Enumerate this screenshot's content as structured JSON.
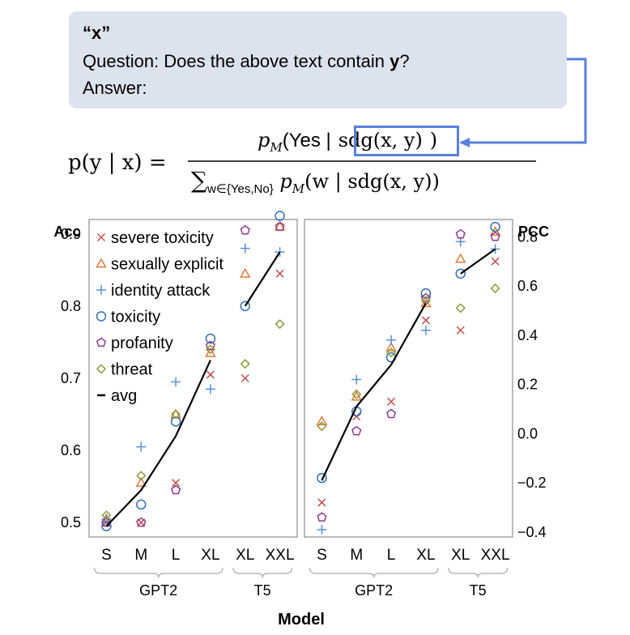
{
  "prompt": {
    "line1": "“x”",
    "line2_pre": "Question:  Does the above text contain ",
    "line2_var": "y",
    "line2_post": "?",
    "line3": "Answer:"
  },
  "equation": {
    "lhs": "p(y | x) =",
    "numerator_pre": "p",
    "numerator_sub": "M",
    "numerator_open": "(Yes |",
    "numerator_sdg": "sdg(x, y)",
    "numerator_close": ")",
    "denominator_sum": "∑",
    "denominator_sub": "w∈{Yes,No}",
    "denominator_rest_p": "p",
    "denominator_rest_sub": "M",
    "denominator_rest": "(w | sdg(x, y))"
  },
  "colors": {
    "severe_toxicity": "#c0504d",
    "sexually_explicit": "#e07b39",
    "identity_attack": "#5b8fd6",
    "toxicity": "#2f6fb5",
    "profanity": "#8e3a8a",
    "threat": "#8c9a3a",
    "avg": "#000000",
    "highlight": "#5b7fe0"
  },
  "chart_data": [
    {
      "type": "scatter",
      "panel": "left",
      "ylabel": "Acc",
      "ylim": [
        0.48,
        0.92
      ],
      "yticks": [
        "0.5",
        "0.6",
        "0.7",
        "0.8",
        "0.9"
      ],
      "categories": [
        "S",
        "M",
        "L",
        "XL",
        "XL",
        "XXL"
      ],
      "groups": [
        {
          "label": "GPT2",
          "span": [
            0,
            3
          ]
        },
        {
          "label": "T5",
          "span": [
            4,
            5
          ]
        }
      ],
      "legend": {
        "position": "top-left",
        "entries": [
          "severe toxicity",
          "sexually explicit",
          "identity attack",
          "toxicity",
          "profanity",
          "threat",
          "avg"
        ]
      },
      "series": [
        {
          "name": "severe toxicity",
          "marker": "x",
          "values": [
            0.5,
            0.5,
            0.555,
            0.705,
            0.7,
            0.845
          ]
        },
        {
          "name": "sexually explicit",
          "marker": "triangle",
          "values": [
            0.505,
            0.555,
            0.65,
            0.735,
            0.845,
            0.91
          ]
        },
        {
          "name": "identity attack",
          "marker": "plus",
          "values": [
            0.505,
            0.605,
            0.695,
            0.685,
            0.88,
            0.875
          ]
        },
        {
          "name": "toxicity",
          "marker": "circle",
          "values": [
            0.495,
            0.525,
            0.64,
            0.755,
            0.8,
            0.925
          ]
        },
        {
          "name": "profanity",
          "marker": "pentagon",
          "values": [
            0.5,
            0.5,
            0.545,
            0.745,
            0.905,
            0.91
          ]
        },
        {
          "name": "threat",
          "marker": "diamond",
          "values": [
            0.51,
            0.565,
            0.65,
            0.74,
            0.72,
            0.775
          ]
        },
        {
          "name": "avg",
          "marker": "line",
          "values": [
            0.495,
            0.545,
            0.62,
            0.725,
            0.8,
            0.875
          ],
          "segments": [
            [
              0,
              3
            ],
            [
              4,
              5
            ]
          ]
        }
      ]
    },
    {
      "type": "scatter",
      "panel": "right",
      "ylabel": "PCC",
      "ylim": [
        -0.42,
        0.87
      ],
      "yticks": [
        "−0.4",
        "−0.2",
        "0.0",
        "0.2",
        "0.4",
        "0.6",
        "0.8"
      ],
      "categories": [
        "S",
        "M",
        "L",
        "XL",
        "XL",
        "XXL"
      ],
      "groups": [
        {
          "label": "GPT2",
          "span": [
            0,
            3
          ]
        },
        {
          "label": "T5",
          "span": [
            4,
            5
          ]
        }
      ],
      "series": [
        {
          "name": "severe toxicity",
          "marker": "x",
          "values": [
            -0.28,
            0.07,
            0.13,
            0.46,
            0.42,
            0.7
          ]
        },
        {
          "name": "sexually explicit",
          "marker": "triangle",
          "values": [
            0.05,
            0.15,
            0.35,
            0.53,
            0.71,
            0.82
          ]
        },
        {
          "name": "identity attack",
          "marker": "plus",
          "values": [
            -0.39,
            0.22,
            0.38,
            0.42,
            0.78,
            0.75
          ]
        },
        {
          "name": "toxicity",
          "marker": "circle",
          "values": [
            -0.18,
            0.09,
            0.31,
            0.57,
            0.65,
            0.84
          ]
        },
        {
          "name": "profanity",
          "marker": "pentagon",
          "values": [
            -0.34,
            0.01,
            0.08,
            0.55,
            0.81,
            0.8
          ]
        },
        {
          "name": "threat",
          "marker": "diamond",
          "values": [
            0.03,
            0.16,
            0.33,
            0.54,
            0.51,
            0.59
          ]
        },
        {
          "name": "avg",
          "marker": "line",
          "values": [
            -0.19,
            0.11,
            0.28,
            0.53,
            0.65,
            0.75
          ],
          "segments": [
            [
              0,
              3
            ],
            [
              4,
              5
            ]
          ]
        }
      ]
    }
  ],
  "xlabel": "Model"
}
